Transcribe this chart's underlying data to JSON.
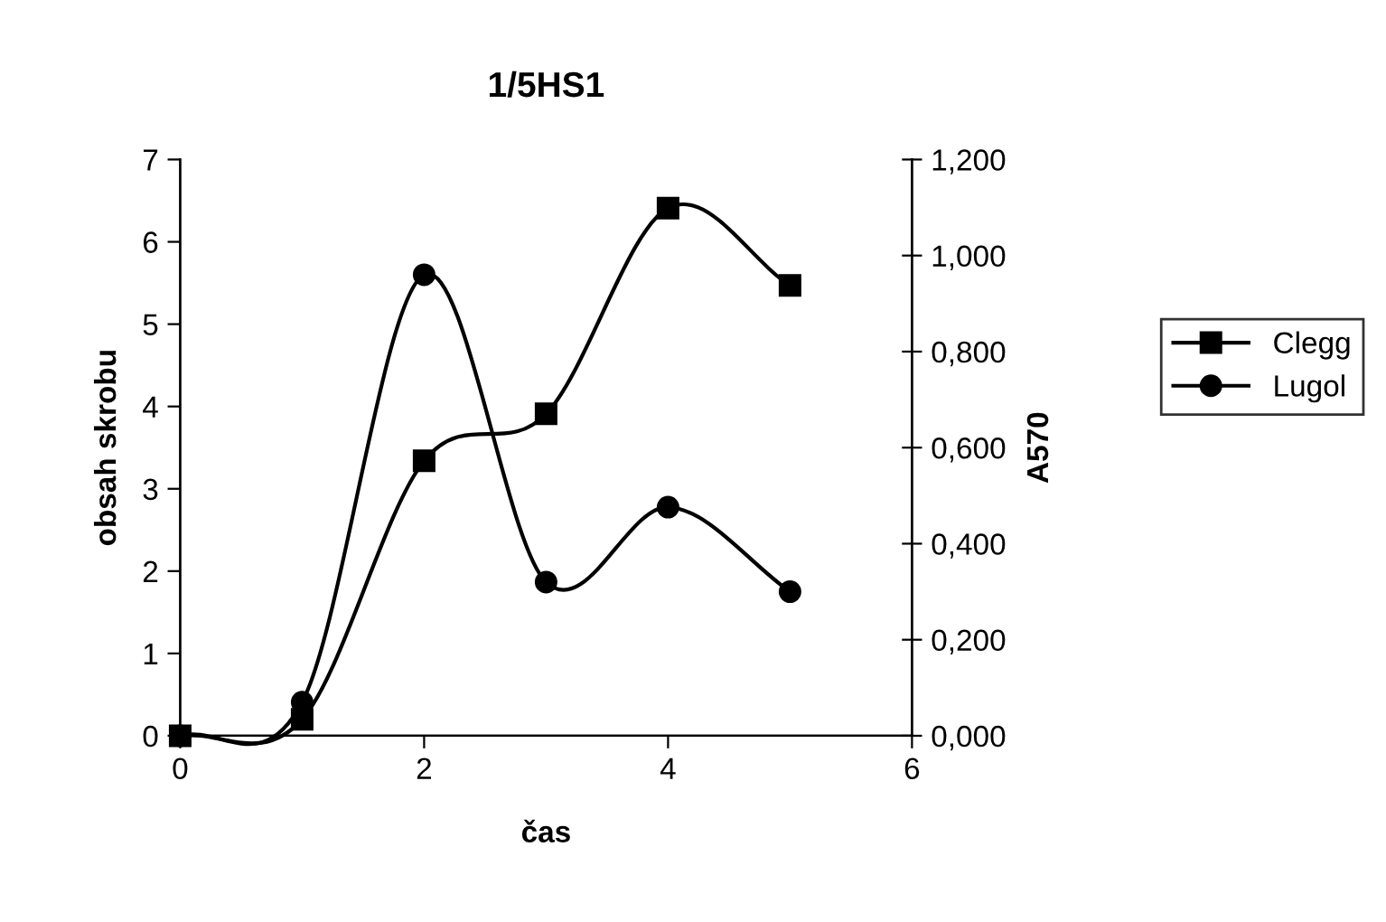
{
  "chart_data": {
    "type": "line",
    "title": "1/5HS1",
    "xlabel": "čas",
    "ylabel": "obsah skrobu",
    "y2label": "A570",
    "x": [
      0,
      1,
      2,
      3,
      4,
      5
    ],
    "series": [
      {
        "name": "Clegg",
        "color": "#000000",
        "marker": "square",
        "values": [
          0,
          0.2,
          3.34,
          3.91,
          6.41,
          5.47
        ]
      },
      {
        "name": "Lugol",
        "color": "#000000",
        "marker": "circle",
        "axis": "y2",
        "values": [
          0,
          0.07,
          0.96,
          0.32,
          0.476,
          0.3
        ]
      }
    ],
    "xlim": [
      0,
      6
    ],
    "xticks": [
      0,
      2,
      4,
      6
    ],
    "ylim": [
      0,
      7
    ],
    "yticks": [
      0,
      1,
      2,
      3,
      4,
      5,
      6,
      7
    ],
    "y2lim": [
      0,
      1.2
    ],
    "y2ticks": [
      {
        "value": 0,
        "label": "0,000"
      },
      {
        "value": 0.2,
        "label": "0,200"
      },
      {
        "value": 0.4,
        "label": "0,400"
      },
      {
        "value": 0.6,
        "label": "0,600"
      },
      {
        "value": 0.8,
        "label": "0,800"
      },
      {
        "value": 1.0,
        "label": "1,000"
      },
      {
        "value": 1.2,
        "label": "1,200"
      }
    ],
    "grid": false,
    "legend": "right",
    "line_style": "solid"
  }
}
